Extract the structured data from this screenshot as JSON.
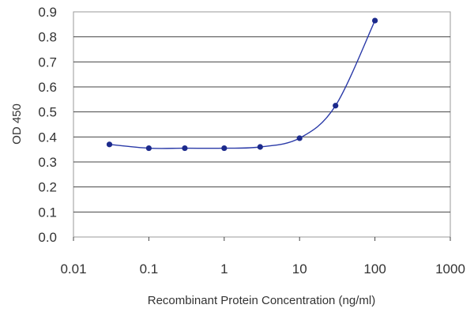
{
  "chart_data": {
    "type": "scatter",
    "xlabel": "Recombinant Protein Concentration (ng/ml)",
    "ylabel": "OD 450",
    "xscale": "log",
    "xlim": [
      0.01,
      1000
    ],
    "ylim": [
      0,
      0.9
    ],
    "x_ticks": [
      "0.01",
      "0.1",
      "1",
      "10",
      "100",
      "1000"
    ],
    "x_tick_values": [
      0.01,
      0.1,
      1,
      10,
      100,
      1000
    ],
    "y_ticks": [
      "0.0",
      "0.1",
      "0.2",
      "0.3",
      "0.4",
      "0.5",
      "0.6",
      "0.7",
      "0.8",
      "0.9"
    ],
    "y_tick_values": [
      0,
      0.1,
      0.2,
      0.3,
      0.4,
      0.5,
      0.6,
      0.7,
      0.8,
      0.9
    ],
    "grid": "horizontal",
    "series": [
      {
        "x": [
          0.03,
          0.1,
          0.3,
          1,
          3,
          10,
          30,
          100
        ],
        "y": [
          0.37,
          0.355,
          0.355,
          0.355,
          0.36,
          0.395,
          0.525,
          0.865
        ],
        "fit_line": true,
        "color": "#1c2a8c"
      }
    ]
  }
}
